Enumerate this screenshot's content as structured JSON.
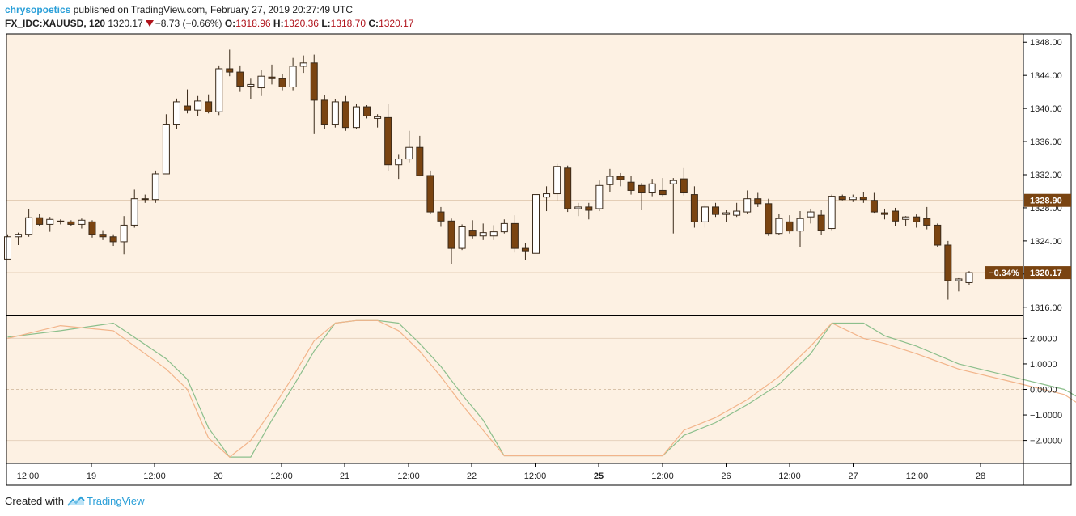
{
  "header": {
    "author": "chrysopoetics",
    "published_text": "published on TradingView.com, February 27, 2019 20:27:49 UTC",
    "symbol": "FX_IDC:XAUUSD, 120",
    "last": "1320.17",
    "change": "−8.73 (−0.66%)",
    "open_label": "O:",
    "open": "1318.96",
    "high_label": "H:",
    "high": "1320.36",
    "low_label": "L:",
    "low": "1318.70",
    "close_label": "C:",
    "close": "1320.17"
  },
  "footer": {
    "created_with": "Created with",
    "brand": "TradingView"
  },
  "colors": {
    "background": "#fdf1e3",
    "up_fill": "#ffffff",
    "down_fill": "#7a4411",
    "candle_border": "#3a2a1a",
    "price_tag": "#7a4411",
    "stoch_k": "#8cbf8c",
    "stoch_d": "#f2b48a",
    "author": "#2a9fd8",
    "change": "#b0141c"
  },
  "chart_data": [
    {
      "type": "candlestick",
      "y_range": [
        1315,
        1349
      ],
      "y_ticks": [
        "1316.00",
        "1320.00",
        "1324.00",
        "1328.00",
        "1332.00",
        "1336.00",
        "1340.00",
        "1344.00",
        "1348.00"
      ],
      "x_tick_labels": [
        "12:00",
        "19",
        "12:00",
        "20",
        "12:00",
        "21",
        "12:00",
        "22",
        "12:00",
        "25",
        "12:00",
        "26",
        "12:00",
        "27",
        "12:00",
        "28"
      ],
      "bold_x_tick": "25",
      "price_labels": [
        {
          "text": "1328.90",
          "value": 1328.9
        },
        {
          "text": "1320.17",
          "value": 1320.17,
          "pct": "−0.34%"
        }
      ],
      "candles": [
        [
          1321.8,
          1324.8,
          1321.8,
          1324.5
        ],
        [
          1324.5,
          1325.0,
          1323.5,
          1324.8
        ],
        [
          1324.8,
          1327.8,
          1324.5,
          1326.8
        ],
        [
          1326.8,
          1327.3,
          1325.8,
          1326.0
        ],
        [
          1326.0,
          1326.9,
          1325.1,
          1326.6
        ],
        [
          1326.4,
          1326.6,
          1326.0,
          1326.3
        ],
        [
          1326.3,
          1326.5,
          1325.8,
          1326.0
        ],
        [
          1326.0,
          1326.7,
          1325.5,
          1326.5
        ],
        [
          1326.3,
          1326.5,
          1324.4,
          1324.8
        ],
        [
          1324.8,
          1325.3,
          1324.1,
          1324.5
        ],
        [
          1324.5,
          1324.8,
          1323.4,
          1323.9
        ],
        [
          1323.9,
          1327.0,
          1322.4,
          1325.9
        ],
        [
          1325.9,
          1330.2,
          1325.6,
          1329.1
        ],
        [
          1329.1,
          1329.6,
          1328.6,
          1329.0
        ],
        [
          1329.0,
          1332.5,
          1328.6,
          1332.1
        ],
        [
          1332.1,
          1339.3,
          1332.1,
          1338.1
        ],
        [
          1338.1,
          1341.2,
          1337.5,
          1340.8
        ],
        [
          1340.3,
          1342.3,
          1339.4,
          1339.8
        ],
        [
          1339.8,
          1341.5,
          1339.1,
          1340.9
        ],
        [
          1340.8,
          1341.7,
          1339.4,
          1339.6
        ],
        [
          1339.6,
          1345.2,
          1339.2,
          1344.8
        ],
        [
          1344.8,
          1347.1,
          1343.9,
          1344.4
        ],
        [
          1344.4,
          1345.2,
          1342.0,
          1342.7
        ],
        [
          1342.7,
          1343.6,
          1341.1,
          1342.9
        ],
        [
          1342.5,
          1344.6,
          1341.5,
          1343.9
        ],
        [
          1343.8,
          1345.3,
          1342.9,
          1343.6
        ],
        [
          1343.6,
          1344.2,
          1342.2,
          1342.6
        ],
        [
          1342.6,
          1346.1,
          1342.2,
          1345.1
        ],
        [
          1345.1,
          1346.4,
          1344.3,
          1345.5
        ],
        [
          1345.5,
          1346.5,
          1336.9,
          1341.0
        ],
        [
          1341.0,
          1341.6,
          1337.5,
          1338.1
        ],
        [
          1338.1,
          1341.1,
          1337.7,
          1340.8
        ],
        [
          1340.8,
          1341.5,
          1337.3,
          1337.7
        ],
        [
          1337.7,
          1340.6,
          1337.5,
          1340.2
        ],
        [
          1340.2,
          1340.4,
          1338.8,
          1339.1
        ],
        [
          1338.8,
          1339.3,
          1337.7,
          1339.0
        ],
        [
          1338.9,
          1340.6,
          1332.4,
          1333.2
        ],
        [
          1333.2,
          1334.4,
          1331.5,
          1333.9
        ],
        [
          1333.9,
          1337.3,
          1333.5,
          1335.3
        ],
        [
          1335.3,
          1336.7,
          1331.8,
          1331.9
        ],
        [
          1331.9,
          1332.5,
          1327.3,
          1327.5
        ],
        [
          1327.5,
          1328.1,
          1325.7,
          1326.4
        ],
        [
          1326.4,
          1326.7,
          1321.2,
          1323.1
        ],
        [
          1323.1,
          1326.0,
          1322.9,
          1325.7
        ],
        [
          1325.3,
          1326.5,
          1324.3,
          1324.6
        ],
        [
          1324.6,
          1326.1,
          1324.1,
          1325.0
        ],
        [
          1324.6,
          1325.9,
          1324.1,
          1325.1
        ],
        [
          1325.1,
          1326.6,
          1324.9,
          1326.1
        ],
        [
          1326.1,
          1327.1,
          1322.6,
          1323.1
        ],
        [
          1323.1,
          1323.7,
          1321.7,
          1322.8
        ],
        [
          1322.5,
          1330.4,
          1322.1,
          1329.6
        ],
        [
          1329.3,
          1330.6,
          1327.6,
          1329.7
        ],
        [
          1329.7,
          1333.3,
          1328.9,
          1333.0
        ],
        [
          1332.8,
          1333.1,
          1327.5,
          1327.9
        ],
        [
          1327.9,
          1328.6,
          1327.0,
          1328.1
        ],
        [
          1328.1,
          1328.6,
          1326.6,
          1327.7
        ],
        [
          1327.9,
          1331.3,
          1327.6,
          1330.7
        ],
        [
          1330.8,
          1332.7,
          1329.9,
          1331.8
        ],
        [
          1331.8,
          1332.2,
          1330.6,
          1331.4
        ],
        [
          1331.1,
          1331.9,
          1329.6,
          1330.1
        ],
        [
          1330.7,
          1331.0,
          1327.7,
          1329.8
        ],
        [
          1329.8,
          1331.5,
          1329.4,
          1330.9
        ],
        [
          1330.1,
          1331.6,
          1329.4,
          1329.6
        ],
        [
          1330.9,
          1331.6,
          1324.9,
          1331.3
        ],
        [
          1331.5,
          1332.8,
          1329.5,
          1329.8
        ],
        [
          1329.6,
          1330.6,
          1325.6,
          1326.3
        ],
        [
          1326.3,
          1328.4,
          1325.6,
          1328.1
        ],
        [
          1328.1,
          1328.6,
          1326.9,
          1327.2
        ],
        [
          1327.2,
          1327.7,
          1326.3,
          1327.4
        ],
        [
          1327.1,
          1328.6,
          1326.9,
          1327.6
        ],
        [
          1327.5,
          1330.1,
          1327.3,
          1329.1
        ],
        [
          1329.1,
          1329.8,
          1328.1,
          1328.5
        ],
        [
          1328.5,
          1329.1,
          1324.6,
          1324.9
        ],
        [
          1324.9,
          1327.3,
          1324.7,
          1326.7
        ],
        [
          1326.3,
          1327.1,
          1324.9,
          1325.2
        ],
        [
          1325.2,
          1327.6,
          1323.3,
          1326.7
        ],
        [
          1326.9,
          1327.9,
          1326.1,
          1327.5
        ],
        [
          1327.1,
          1327.7,
          1324.7,
          1325.3
        ],
        [
          1325.5,
          1329.6,
          1325.3,
          1329.4
        ],
        [
          1329.4,
          1329.6,
          1328.9,
          1329.0
        ],
        [
          1329.0,
          1329.6,
          1328.7,
          1329.3
        ],
        [
          1329.3,
          1329.9,
          1328.6,
          1329.0
        ],
        [
          1328.9,
          1329.8,
          1327.4,
          1327.5
        ],
        [
          1327.4,
          1327.9,
          1326.6,
          1327.2
        ],
        [
          1327.6,
          1328.0,
          1325.8,
          1326.4
        ],
        [
          1326.6,
          1327.0,
          1325.8,
          1326.9
        ],
        [
          1326.9,
          1327.2,
          1325.6,
          1326.3
        ],
        [
          1326.7,
          1328.1,
          1325.4,
          1325.9
        ],
        [
          1325.9,
          1326.1,
          1323.3,
          1323.5
        ],
        [
          1323.5,
          1324.0,
          1316.9,
          1319.2
        ],
        [
          1319.2,
          1319.5,
          1317.9,
          1319.4
        ],
        [
          1318.96,
          1320.36,
          1318.7,
          1320.17
        ]
      ]
    },
    {
      "type": "line",
      "y_range": [
        -2.9,
        2.9
      ],
      "y_ticks": [
        "2.0000",
        "1.0000",
        "0.0000",
        "−1.0000",
        "−2.0000"
      ],
      "series": [
        {
          "points": [
            [
              0,
              2.05
            ],
            [
              5,
              2.3
            ],
            [
              10,
              2.6
            ],
            [
              15,
              1.2
            ],
            [
              17,
              0.4
            ],
            [
              19,
              -1.5
            ],
            [
              21,
              -2.65
            ],
            [
              23,
              -2.65
            ],
            [
              25,
              -1.2
            ],
            [
              27,
              0.1
            ],
            [
              29,
              1.5
            ],
            [
              31,
              2.6
            ],
            [
              33,
              2.7
            ],
            [
              35,
              2.7
            ],
            [
              37,
              2.6
            ],
            [
              39,
              1.8
            ],
            [
              41,
              0.9
            ],
            [
              43,
              -0.2
            ],
            [
              45,
              -1.2
            ],
            [
              47,
              -2.6
            ],
            [
              52,
              -2.6
            ],
            [
              57,
              -2.6
            ],
            [
              62,
              -2.6
            ],
            [
              64,
              -1.8
            ],
            [
              67,
              -1.3
            ],
            [
              70,
              -0.6
            ],
            [
              73,
              0.2
            ],
            [
              76,
              1.4
            ],
            [
              78,
              2.6
            ],
            [
              81,
              2.6
            ],
            [
              83,
              2.1
            ],
            [
              86,
              1.7
            ],
            [
              90,
              1.0
            ],
            [
              95,
              0.5
            ],
            [
              100,
              0.0
            ],
            [
              103,
              -0.7
            ],
            [
              105,
              -1.25
            ],
            [
              108,
              -0.6
            ],
            [
              112,
              -0.2
            ],
            [
              118,
              0.25
            ],
            [
              120,
              0.2
            ],
            [
              123,
              -0.3
            ]
          ]
        },
        {
          "points": [
            [
              0,
              2.0
            ],
            [
              5,
              2.5
            ],
            [
              10,
              2.3
            ],
            [
              15,
              0.8
            ],
            [
              17,
              0.0
            ],
            [
              19,
              -1.9
            ],
            [
              21,
              -2.65
            ],
            [
              23,
              -2.0
            ],
            [
              25,
              -0.8
            ],
            [
              27,
              0.5
            ],
            [
              29,
              1.9
            ],
            [
              31,
              2.6
            ],
            [
              33,
              2.7
            ],
            [
              35,
              2.7
            ],
            [
              37,
              2.3
            ],
            [
              39,
              1.5
            ],
            [
              41,
              0.5
            ],
            [
              43,
              -0.6
            ],
            [
              45,
              -1.6
            ],
            [
              47,
              -2.6
            ],
            [
              52,
              -2.6
            ],
            [
              57,
              -2.6
            ],
            [
              62,
              -2.6
            ],
            [
              64,
              -1.6
            ],
            [
              67,
              -1.1
            ],
            [
              70,
              -0.4
            ],
            [
              73,
              0.5
            ],
            [
              76,
              1.7
            ],
            [
              78,
              2.6
            ],
            [
              81,
              2.0
            ],
            [
              83,
              1.8
            ],
            [
              86,
              1.4
            ],
            [
              90,
              0.8
            ],
            [
              95,
              0.3
            ],
            [
              100,
              -0.2
            ],
            [
              103,
              -1.0
            ],
            [
              105,
              -1.2
            ],
            [
              108,
              -0.4
            ],
            [
              112,
              0.0
            ],
            [
              118,
              0.25
            ],
            [
              120,
              0.2
            ],
            [
              123,
              -0.7
            ]
          ]
        }
      ]
    }
  ]
}
